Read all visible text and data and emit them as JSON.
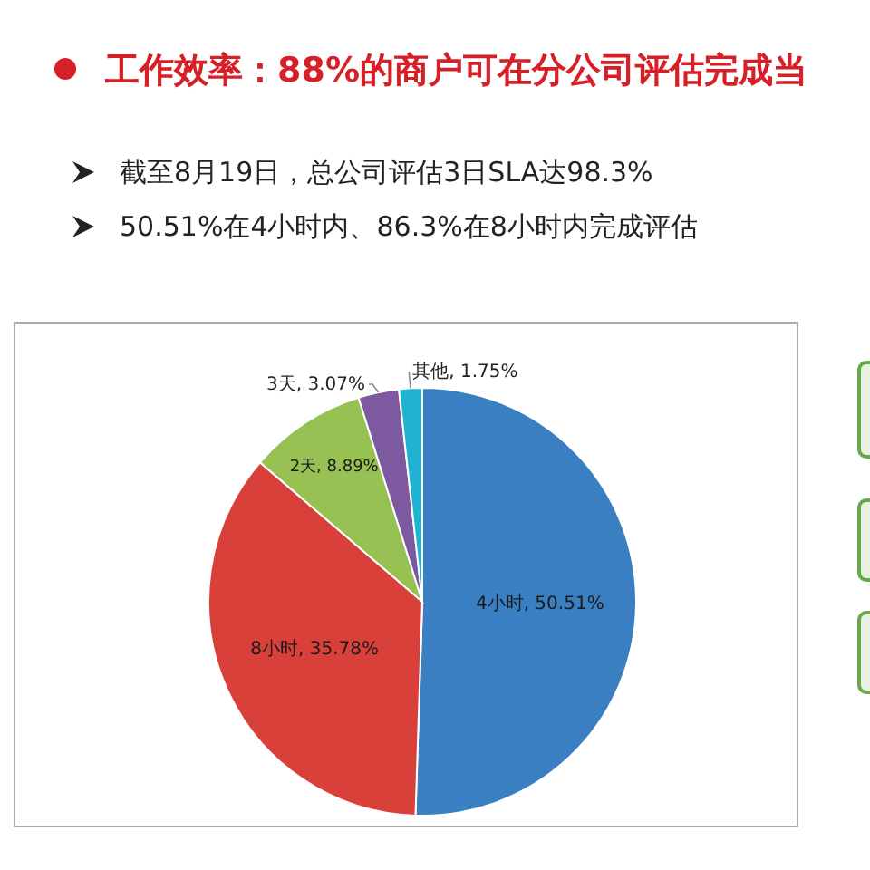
{
  "chart_data": {
    "type": "pie",
    "title": "工作效率：88%的商户可在分公司评估完成当",
    "annotations": [
      "截至8月19日，总公司评估3日SLA达98.3%",
      "50.51%在4小时内、86.3%在8小时内完成评估"
    ],
    "categories": [
      "4小时",
      "8小时",
      "2天",
      "3天",
      "其他"
    ],
    "value_labels": [
      ", 50.51%",
      ", 35.78%",
      ", 8.89%",
      ", 3.07%",
      ", 1.75%"
    ],
    "values": [
      50.51,
      35.78,
      8.89,
      3.07,
      1.75
    ],
    "colors": [
      "#3a7fc1",
      "#d9403a",
      "#98c154",
      "#7d5aa0",
      "#1fb3d1"
    ]
  }
}
